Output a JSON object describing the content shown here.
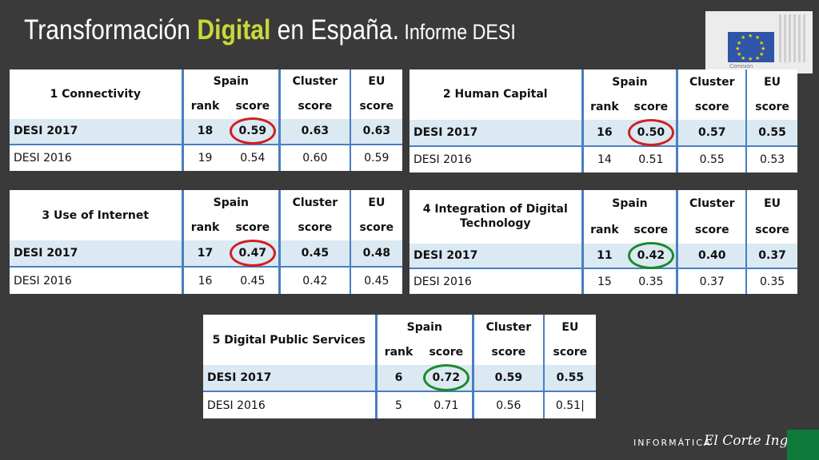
{
  "title": {
    "part1": "Transformación ",
    "highlight": "Digital",
    "part2": " en España.",
    "sub": " Informe DESI"
  },
  "logo": {
    "caption": "Comisión"
  },
  "headers": {
    "spain": "Spain",
    "cluster": "Cluster",
    "eu": "EU",
    "rank": "rank",
    "score": "score"
  },
  "tables": [
    {
      "name": "1 Connectivity",
      "r2017": {
        "label": "DESI 2017",
        "rank": "18",
        "score": "0.59",
        "cluster": "0.63",
        "eu": "0.63"
      },
      "r2016": {
        "label": "DESI 2016",
        "rank": "19",
        "score": "0.54",
        "cluster": "0.60",
        "eu": "0.59"
      }
    },
    {
      "name": "2 Human Capital",
      "r2017": {
        "label": "DESI 2017",
        "rank": "16",
        "score": "0.50",
        "cluster": "0.57",
        "eu": "0.55"
      },
      "r2016": {
        "label": "DESI 2016",
        "rank": "14",
        "score": "0.51",
        "cluster": "0.55",
        "eu": "0.53"
      }
    },
    {
      "name": "3 Use of Internet",
      "r2017": {
        "label": "DESI 2017",
        "rank": "17",
        "score": "0.47",
        "cluster": "0.45",
        "eu": "0.48"
      },
      "r2016": {
        "label": "DESI 2016",
        "rank": "16",
        "score": "0.45",
        "cluster": "0.42",
        "eu": "0.45"
      }
    },
    {
      "name": "4 Integration of Digital Technology",
      "r2017": {
        "label": "DESI 2017",
        "rank": "11",
        "score": "0.42",
        "cluster": "0.40",
        "eu": "0.37"
      },
      "r2016": {
        "label": "DESI 2016",
        "rank": "15",
        "score": "0.35",
        "cluster": "0.37",
        "eu": "0.35"
      }
    },
    {
      "name": "5 Digital Public Services",
      "r2017": {
        "label": "DESI 2017",
        "rank": "6",
        "score": "0.72",
        "cluster": "0.59",
        "eu": "0.55"
      },
      "r2016": {
        "label": "DESI 2016",
        "rank": "5",
        "score": "0.71",
        "cluster": "0.56",
        "eu": "0.51|"
      }
    }
  ],
  "colors": {
    "ring_red": "#d02020",
    "ring_green": "#1a8a2a",
    "accent_blue": "#4a7ec2",
    "title_highlight": "#c8d93a"
  },
  "footer": {
    "text": "INFORMÁTICA",
    "brand": "El Corte Inglés"
  }
}
